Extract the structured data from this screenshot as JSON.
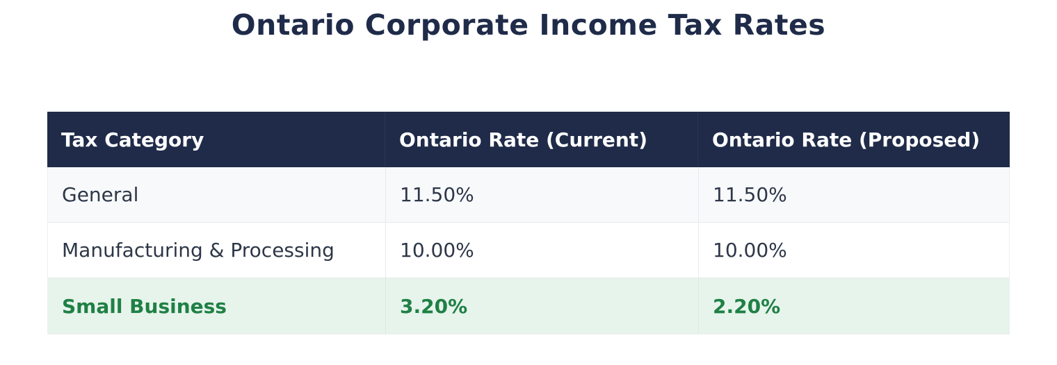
{
  "page": {
    "title": "Ontario Corporate Income Tax Rates"
  },
  "colors": {
    "title_text": "#1f2b49",
    "header_bg": "#1f2b49",
    "header_text": "#ffffff",
    "row_alt_bg": "#f8f9fb",
    "row_bg": "#ffffff",
    "body_text": "#2d3748",
    "highlight_row_bg": "#e7f4eb",
    "highlight_text": "#1f8045",
    "divider": "#e7e9ec"
  },
  "table": {
    "headers": [
      "Tax Category",
      "Ontario Rate (Current)",
      "Ontario Rate (Proposed)"
    ],
    "rows": [
      {
        "cells": [
          "General",
          "11.50%",
          "11.50%"
        ],
        "highlight": false
      },
      {
        "cells": [
          "Manufacturing & Processing",
          "10.00%",
          "10.00%"
        ],
        "highlight": false
      },
      {
        "cells": [
          "Small Business",
          "3.20%",
          "2.20%"
        ],
        "highlight": true
      }
    ]
  },
  "chart_data": {
    "type": "table",
    "title": "Ontario Corporate Income Tax Rates",
    "columns": [
      "Tax Category",
      "Ontario Rate (Current)",
      "Ontario Rate (Proposed)"
    ],
    "rows": [
      [
        "General",
        "11.50%",
        "11.50%"
      ],
      [
        "Manufacturing & Processing",
        "10.00%",
        "10.00%"
      ],
      [
        "Small Business",
        "3.20%",
        "2.20%"
      ]
    ],
    "highlighted_row": "Small Business",
    "categories": [
      "General",
      "Manufacturing & Processing",
      "Small Business"
    ],
    "series": [
      {
        "name": "Ontario Rate (Current)",
        "values": [
          11.5,
          10.0,
          3.2
        ]
      },
      {
        "name": "Ontario Rate (Proposed)",
        "values": [
          11.5,
          10.0,
          2.2
        ]
      }
    ],
    "unit": "%"
  }
}
